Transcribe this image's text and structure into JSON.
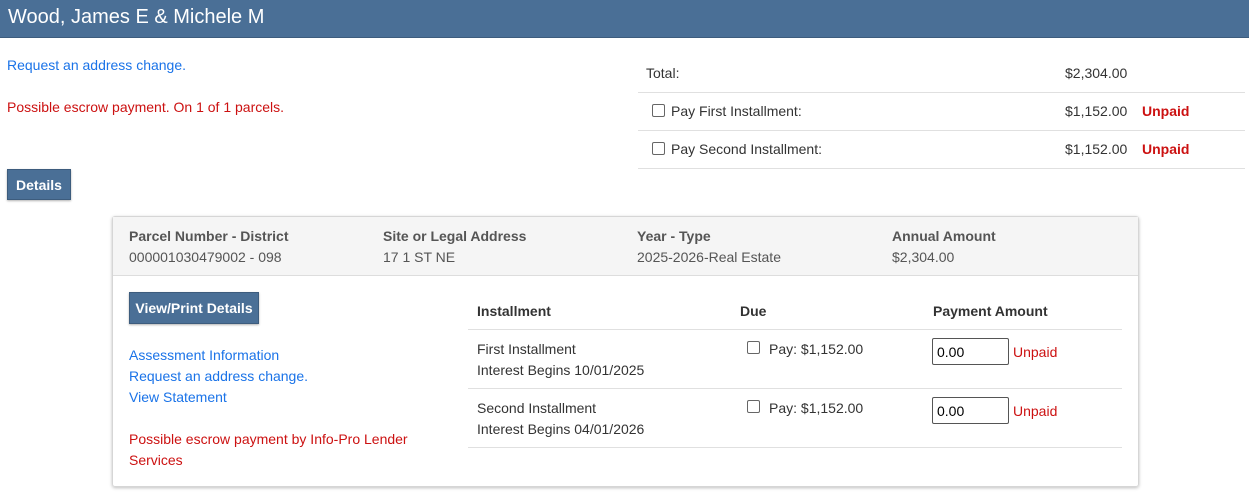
{
  "header": {
    "title": "Wood, James E & Michele M"
  },
  "summary": {
    "address_link": "Request an address change.",
    "escrow_notice": "Possible escrow payment. On 1 of 1 parcels.",
    "details_button": "Details"
  },
  "totals": {
    "total_label": "Total:",
    "total_value": "$2,304.00",
    "rows": [
      {
        "label": "Pay First Installment:",
        "value": "$1,152.00",
        "status": "Unpaid"
      },
      {
        "label": "Pay Second Installment:",
        "value": "$1,152.00",
        "status": "Unpaid"
      }
    ]
  },
  "parcel": {
    "columns": [
      {
        "label": "Parcel Number - District",
        "value": "000001030479002 - 098"
      },
      {
        "label": "Site or Legal Address",
        "value": "17 1 ST NE"
      },
      {
        "label": "Year - Type",
        "value": "2025-2026-Real Estate"
      },
      {
        "label": "Annual Amount",
        "value": "$2,304.00"
      }
    ],
    "view_print_button": "View/Print Details",
    "links": [
      "Assessment Information",
      "Request an address change.",
      "View Statement"
    ],
    "escrow_notice_1": "Possible escrow payment by Info-Pro Lender",
    "escrow_notice_2": "Services",
    "table": {
      "headers": [
        "Installment",
        "Due",
        "Payment Amount"
      ],
      "rows": [
        {
          "name": "First Installment",
          "interest": "Interest Begins 10/01/2025",
          "due": "Pay: $1,152.00",
          "amount": "0.00",
          "status": "Unpaid"
        },
        {
          "name": "Second Installment",
          "interest": "Interest Begins 04/01/2026",
          "due": "Pay: $1,152.00",
          "amount": "0.00",
          "status": "Unpaid"
        }
      ]
    }
  },
  "colors": {
    "header": "#4a6f96",
    "link": "#1a73e8",
    "alert": "#cc1111"
  }
}
